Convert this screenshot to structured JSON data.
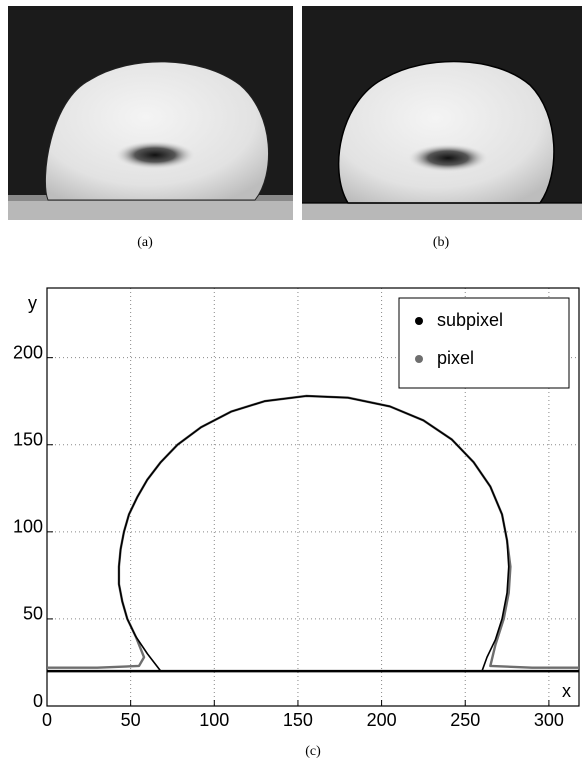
{
  "panels": [
    {
      "caption": "(a)"
    },
    {
      "caption": "(b)"
    }
  ],
  "chart_data": {
    "type": "line",
    "caption": "(c)",
    "xlabel": "x",
    "ylabel": "y",
    "xlim": [
      0,
      318
    ],
    "ylim": [
      0,
      240
    ],
    "xticks": [
      0,
      50,
      100,
      150,
      200,
      250,
      300
    ],
    "yticks": [
      0,
      50,
      100,
      150,
      200
    ],
    "grid": true,
    "legend": "upper right",
    "baseline_y": 20,
    "series": [
      {
        "name": "subpixel",
        "color": "#000000",
        "x": [
          68,
          60,
          53,
          48,
          45,
          43,
          43,
          44,
          46,
          49,
          54,
          60,
          68,
          78,
          92,
          110,
          130,
          155,
          180,
          205,
          225,
          242,
          255,
          265,
          272,
          275,
          276,
          275,
          272,
          268,
          263,
          260
        ],
        "values": [
          20,
          30,
          40,
          50,
          60,
          70,
          80,
          90,
          100,
          110,
          120,
          130,
          140,
          150,
          160,
          169,
          175,
          178,
          177,
          172,
          164,
          153,
          140,
          126,
          110,
          95,
          80,
          65,
          50,
          38,
          28,
          20
        ]
      },
      {
        "name": "pixel",
        "color": "#6e6e6e",
        "x": [
          0,
          30,
          55,
          58,
          53,
          48,
          45,
          43,
          43,
          44,
          46,
          49,
          54,
          60,
          68,
          78,
          92,
          110,
          130,
          155,
          180,
          205,
          225,
          242,
          255,
          265,
          272,
          275,
          277,
          276,
          273,
          268,
          265,
          290,
          318
        ],
        "values": [
          22,
          22,
          23,
          28,
          40,
          50,
          60,
          70,
          80,
          90,
          100,
          110,
          120,
          130,
          140,
          150,
          160,
          169,
          175,
          178,
          177,
          172,
          164,
          153,
          140,
          126,
          110,
          95,
          80,
          65,
          50,
          35,
          23,
          22,
          22
        ]
      }
    ]
  }
}
